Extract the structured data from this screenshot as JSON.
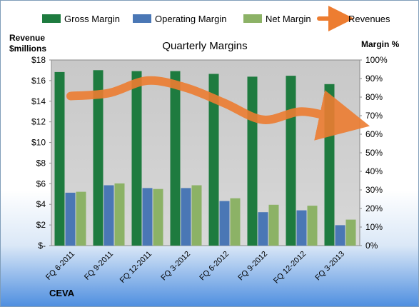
{
  "chart_data": {
    "type": "bar",
    "title": "Quarterly Margins",
    "left_axis_label": [
      "Revenue",
      "$millions"
    ],
    "right_axis_label": "Margin %",
    "company": "CEVA",
    "categories": [
      "FQ 6-2011",
      "FQ 9-2011",
      "FQ 12-2011",
      "FQ 3-2012",
      "FQ 6-2012",
      "FQ 9-2012",
      "FQ 12-2012",
      "FQ 3-2013"
    ],
    "left_ticks": [
      "$-",
      "$2",
      "$4",
      "$6",
      "$8",
      "$10",
      "$12",
      "$14",
      "$16",
      "$18"
    ],
    "right_ticks": [
      "0%",
      "10%",
      "20%",
      "30%",
      "40%",
      "50%",
      "60%",
      "70%",
      "80%",
      "90%",
      "100%"
    ],
    "left_ylim": [
      0,
      18
    ],
    "right_ylim": [
      0,
      100
    ],
    "series": [
      {
        "name": "Gross Margin",
        "axis": "right",
        "kind": "bar",
        "color": "#1e7b3f",
        "values": [
          93.5,
          94.5,
          94,
          94,
          92.5,
          91,
          91.5,
          87
        ]
      },
      {
        "name": "Operating Margin",
        "axis": "right",
        "kind": "bar",
        "color": "#4a77b5",
        "values": [
          28.5,
          32.5,
          31,
          31,
          24,
          18,
          19,
          11
        ]
      },
      {
        "name": "Net Margin",
        "axis": "right",
        "kind": "bar",
        "color": "#8cb266",
        "values": [
          29,
          33.5,
          30.5,
          32.5,
          25.5,
          22,
          21.5,
          14
        ]
      },
      {
        "name": "Revenues",
        "axis": "left",
        "kind": "line",
        "color": "#ed7d31",
        "values": [
          14.5,
          14.8,
          16.0,
          15.3,
          13.8,
          12.2,
          13.0,
          12.2
        ]
      }
    ],
    "grid": false,
    "legend_position": "top"
  }
}
